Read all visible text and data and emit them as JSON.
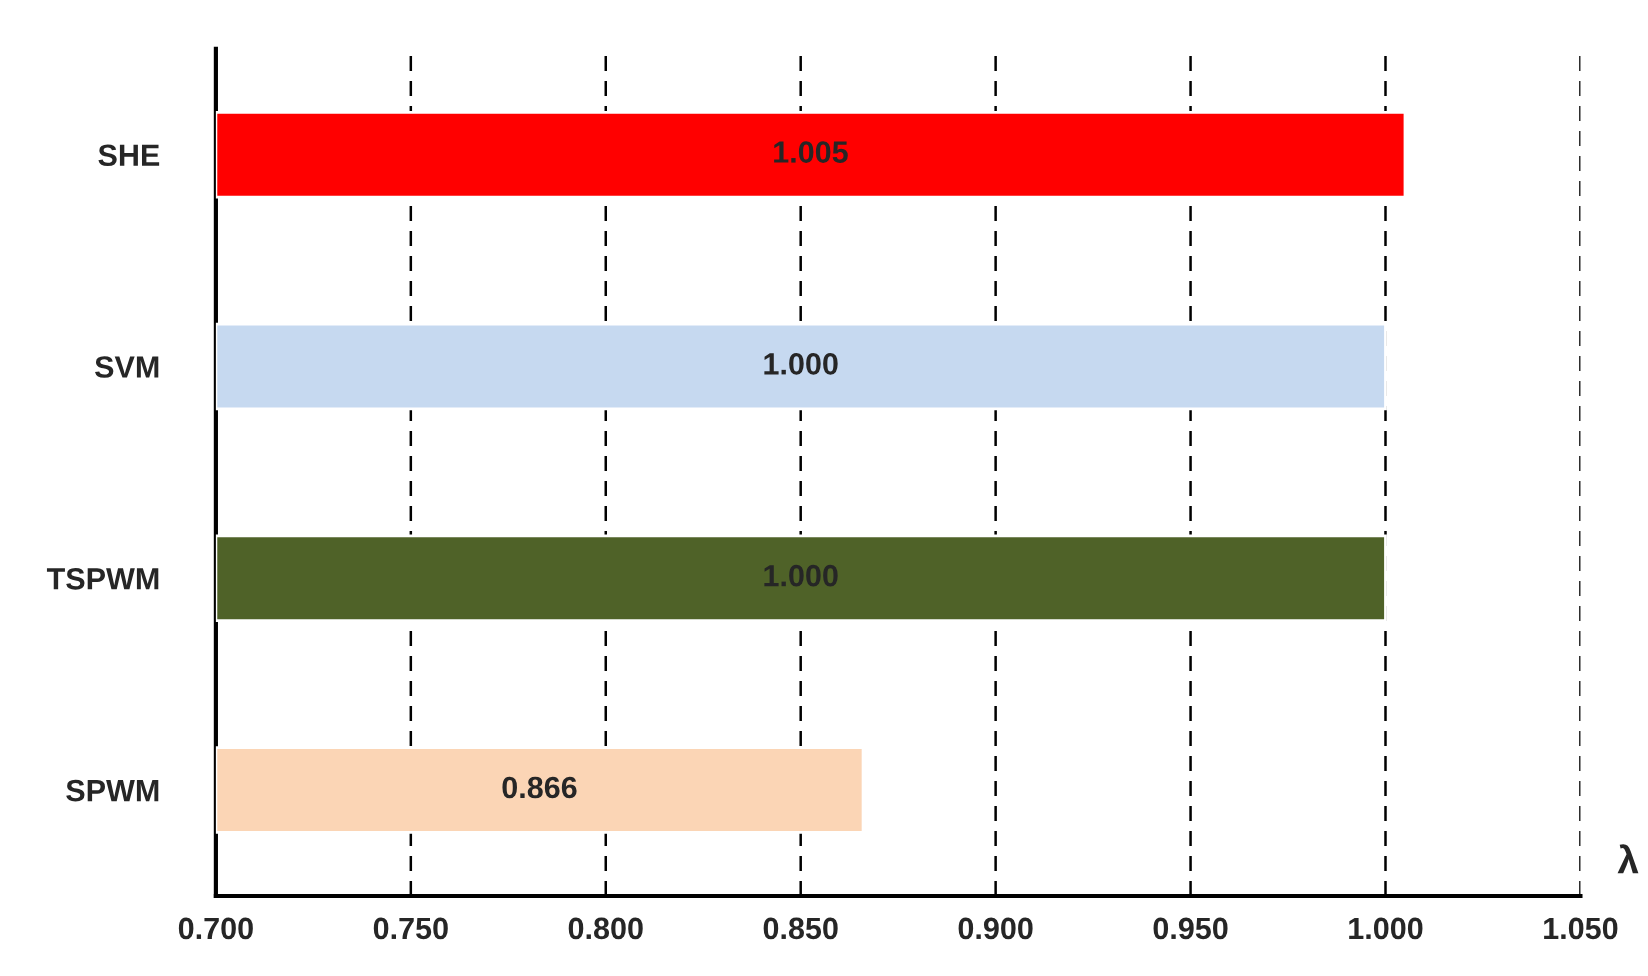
{
  "chart_data": {
    "type": "bar",
    "orientation": "horizontal",
    "xlabel": "λ",
    "categories": [
      "SHE",
      "SVM",
      "TSPWM",
      "SPWM"
    ],
    "values": [
      1.005,
      1.0,
      1.0,
      0.866
    ],
    "colors": [
      "#ff0000",
      "#c6d9f0",
      "#4f6228",
      "#fbd5b5"
    ],
    "value_labels": [
      "1.005",
      "1.000",
      "1.000",
      "0.866"
    ],
    "xlim": [
      0.7,
      1.05
    ],
    "xticks": [
      {
        "value": 0.7,
        "label": "0.700"
      },
      {
        "value": 0.75,
        "label": "0.750"
      },
      {
        "value": 0.8,
        "label": "0.800"
      },
      {
        "value": 0.85,
        "label": "0.850"
      },
      {
        "value": 0.9,
        "label": "0.900"
      },
      {
        "value": 0.95,
        "label": "0.950"
      },
      {
        "value": 1.0,
        "label": "1.000"
      },
      {
        "value": 1.05,
        "label": "1.050"
      }
    ],
    "grid": "x"
  }
}
